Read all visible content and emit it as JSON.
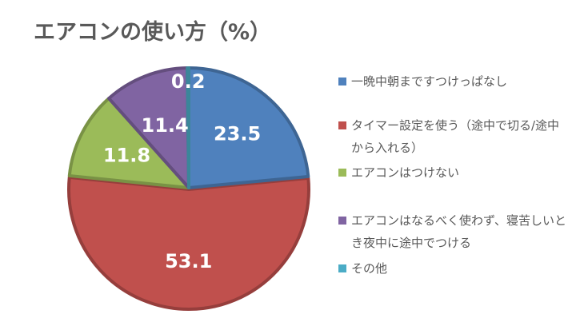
{
  "chart_data": {
    "type": "pie",
    "title": "エアコンの使い方（%）",
    "series": [
      {
        "name": "一晩中朝まですつけっぱなし",
        "value": 23.5,
        "label": "23.5",
        "color": "#4f81bd"
      },
      {
        "name": "タイマー設定を使う（途中で切る/途中から入れる）",
        "value": 53.1,
        "label": "53.1",
        "color": "#c0504d"
      },
      {
        "name": "エアコンはつけない",
        "value": 11.8,
        "label": "11.8",
        "color": "#9bbb59"
      },
      {
        "name": "エアコンはなるべく使わず、寝苦しいとき夜中に途中でつける",
        "value": 11.4,
        "label": "11.4",
        "color": "#8064a2"
      },
      {
        "name": "その他",
        "value": 0.2,
        "label": "0.2",
        "color": "#4bacc6"
      }
    ],
    "start_angle_deg": 0,
    "direction": "clockwise",
    "legend_position": "right"
  }
}
